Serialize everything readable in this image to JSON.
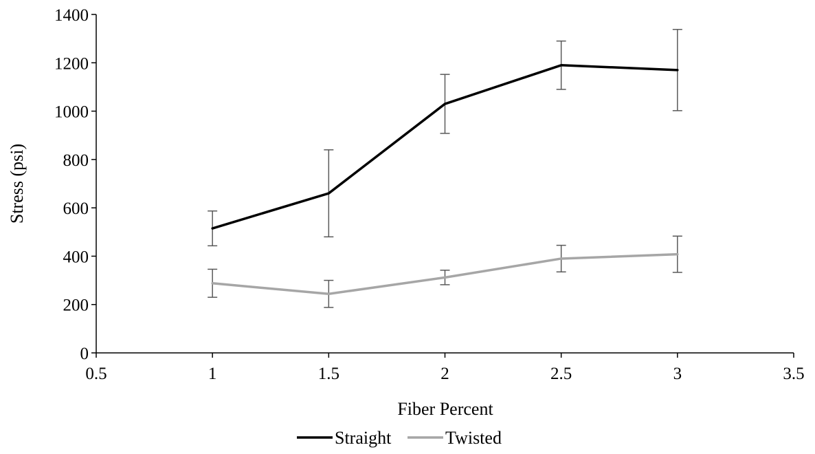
{
  "chart_data": {
    "type": "line",
    "title": "",
    "xlabel": "Fiber Percent",
    "ylabel": "Stress (psi)",
    "xlim": [
      0.5,
      3.5
    ],
    "ylim": [
      0,
      1400
    ],
    "xticks": [
      "0.5",
      "1",
      "1.5",
      "2",
      "2.5",
      "3",
      "3.5"
    ],
    "yticks": [
      "0",
      "200",
      "400",
      "600",
      "800",
      "1000",
      "1200",
      "1400"
    ],
    "grid": false,
    "legend_position": "bottom",
    "series": [
      {
        "name": "Straight",
        "color": "#000000",
        "x": [
          1,
          1.5,
          2,
          2.5,
          3
        ],
        "y": [
          515,
          660,
          1030,
          1190,
          1170
        ],
        "error": [
          72,
          180,
          122,
          100,
          168
        ]
      },
      {
        "name": "Twisted",
        "color": "#a6a6a6",
        "x": [
          1,
          1.5,
          2,
          2.5,
          3
        ],
        "y": [
          288,
          244,
          312,
          390,
          408
        ],
        "error": [
          58,
          56,
          30,
          55,
          75
        ]
      }
    ]
  }
}
